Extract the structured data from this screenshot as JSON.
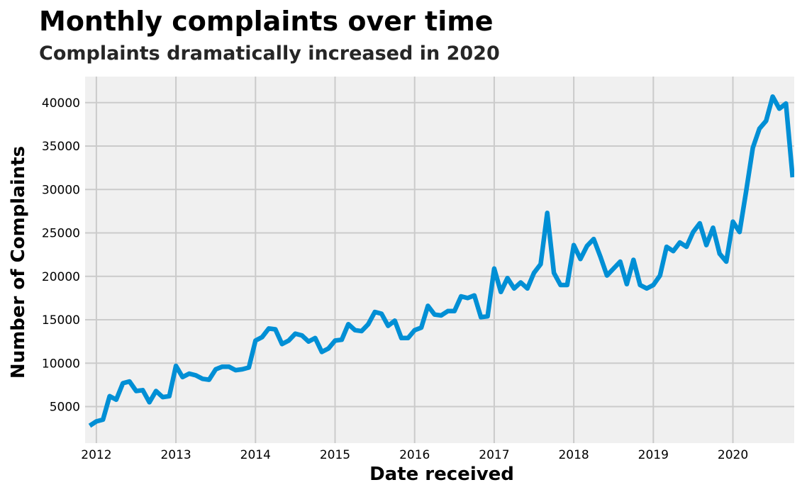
{
  "chart_data": {
    "type": "line",
    "title": "Monthly complaints over time",
    "subtitle": "Complaints dramatically increased in 2020",
    "xlabel": "Date received",
    "ylabel": "Number of Complaints",
    "x_ticks": [
      "2012",
      "2013",
      "2014",
      "2015",
      "2016",
      "2017",
      "2018",
      "2019",
      "2020"
    ],
    "y_ticks": [
      5000,
      10000,
      15000,
      20000,
      25000,
      30000,
      35000,
      40000
    ],
    "xlim": [
      "2011-12",
      "2020-10"
    ],
    "ylim": [
      800,
      43000
    ],
    "grid": true,
    "colors": {
      "line": "#008fd5",
      "background": "#f0f0f0",
      "grid": "#cbcbcb"
    },
    "series": [
      {
        "x": [
          "2011-12",
          "2012-01",
          "2012-02",
          "2012-03",
          "2012-04",
          "2012-05",
          "2012-06",
          "2012-07",
          "2012-08",
          "2012-09",
          "2012-10",
          "2012-11",
          "2012-12",
          "2013-01",
          "2013-02",
          "2013-03",
          "2013-04",
          "2013-05",
          "2013-06",
          "2013-07",
          "2013-08",
          "2013-09",
          "2013-10",
          "2013-11",
          "2013-12",
          "2014-01",
          "2014-02",
          "2014-03",
          "2014-04",
          "2014-05",
          "2014-06",
          "2014-07",
          "2014-08",
          "2014-09",
          "2014-10",
          "2014-11",
          "2014-12",
          "2015-01",
          "2015-02",
          "2015-03",
          "2015-04",
          "2015-05",
          "2015-06",
          "2015-07",
          "2015-08",
          "2015-09",
          "2015-10",
          "2015-11",
          "2015-12",
          "2016-01",
          "2016-02",
          "2016-03",
          "2016-04",
          "2016-05",
          "2016-06",
          "2016-07",
          "2016-08",
          "2016-09",
          "2016-10",
          "2016-11",
          "2016-12",
          "2017-01",
          "2017-02",
          "2017-03",
          "2017-04",
          "2017-05",
          "2017-06",
          "2017-07",
          "2017-08",
          "2017-09",
          "2017-10",
          "2017-11",
          "2017-12",
          "2018-01",
          "2018-02",
          "2018-03",
          "2018-04",
          "2018-05",
          "2018-06",
          "2018-07",
          "2018-08",
          "2018-09",
          "2018-10",
          "2018-11",
          "2018-12",
          "2019-01",
          "2019-02",
          "2019-03",
          "2019-04",
          "2019-05",
          "2019-06",
          "2019-07",
          "2019-08",
          "2019-09",
          "2019-10",
          "2019-11",
          "2019-12",
          "2020-01",
          "2020-02",
          "2020-03",
          "2020-04",
          "2020-05",
          "2020-06",
          "2020-07",
          "2020-08",
          "2020-09",
          "2020-10"
        ],
        "values": [
          2800,
          3300,
          3500,
          6200,
          5800,
          7700,
          7900,
          6800,
          6900,
          5500,
          6800,
          6100,
          6200,
          9700,
          8400,
          8800,
          8600,
          8200,
          8100,
          9300,
          9600,
          9600,
          9200,
          9300,
          9500,
          12600,
          13000,
          14000,
          13900,
          12200,
          12600,
          13400,
          13200,
          12500,
          12900,
          11300,
          11700,
          12600,
          12700,
          14500,
          13800,
          13700,
          14500,
          15900,
          15700,
          14300,
          14900,
          12900,
          12900,
          13800,
          14100,
          16600,
          15600,
          15500,
          16000,
          16000,
          17700,
          17500,
          17800,
          15300,
          15400,
          20900,
          18200,
          19800,
          18600,
          19300,
          18600,
          20400,
          21400,
          27300,
          20400,
          19000,
          19000,
          23600,
          22000,
          23500,
          24300,
          22300,
          20100,
          20900,
          21700,
          19100,
          21900,
          19000,
          18600,
          19000,
          20100,
          23400,
          22900,
          23900,
          23400,
          25100,
          26100,
          23600,
          25600,
          22600,
          21700,
          26300,
          25100,
          29800,
          34800,
          37000,
          37900,
          40700,
          39300,
          39900,
          31400
        ]
      }
    ]
  }
}
